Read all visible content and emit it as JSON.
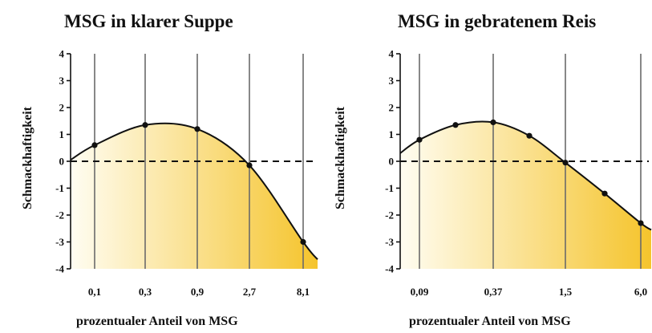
{
  "chart_data": [
    {
      "type": "line",
      "title": "MSG in klarer Suppe",
      "xlabel": "prozentualer Anteil von MSG",
      "ylabel": "Schmackhaftigkeit",
      "ylim": [
        -4,
        4
      ],
      "yticks": [
        "4",
        "3",
        "2",
        "1",
        "0",
        "-1",
        "-2",
        "-3",
        "-4"
      ],
      "categories": [
        "0,1",
        "0,3",
        "0,9",
        "2,7",
        "8,1"
      ],
      "points": [
        {
          "x": "0,1",
          "y": 0.6
        },
        {
          "x": "0,3",
          "y": 1.35
        },
        {
          "x": "0,9",
          "y": 1.2
        },
        {
          "x": "2,7",
          "y": -0.15
        },
        {
          "x": "8,1",
          "y": -3.0
        }
      ],
      "zero_line": "dashed",
      "fill_gradient": [
        "#fffdf2",
        "#f5c42c"
      ],
      "line_color": "#111111"
    },
    {
      "type": "line",
      "title": "MSG in gebratenem Reis",
      "xlabel": "prozentualer Anteil von MSG",
      "ylabel": "Schmackhaftigkeit",
      "ylim": [
        -4,
        4
      ],
      "yticks": [
        "4",
        "3",
        "2",
        "1",
        "0",
        "-1",
        "-2",
        "-3",
        "-4"
      ],
      "categories": [
        "0,09",
        "0,37",
        "1,5",
        "6,0"
      ],
      "points": [
        {
          "x": "0,09",
          "y": 0.8
        },
        {
          "x": null,
          "y": 1.35
        },
        {
          "x": "0,37",
          "y": 1.45
        },
        {
          "x": null,
          "y": 0.95
        },
        {
          "x": "1,5",
          "y": -0.05
        },
        {
          "x": null,
          "y": -1.2
        },
        {
          "x": "6,0",
          "y": -2.3
        }
      ],
      "zero_line": "dashed",
      "fill_gradient": [
        "#fffdf2",
        "#f5c42c"
      ],
      "line_color": "#111111"
    }
  ]
}
